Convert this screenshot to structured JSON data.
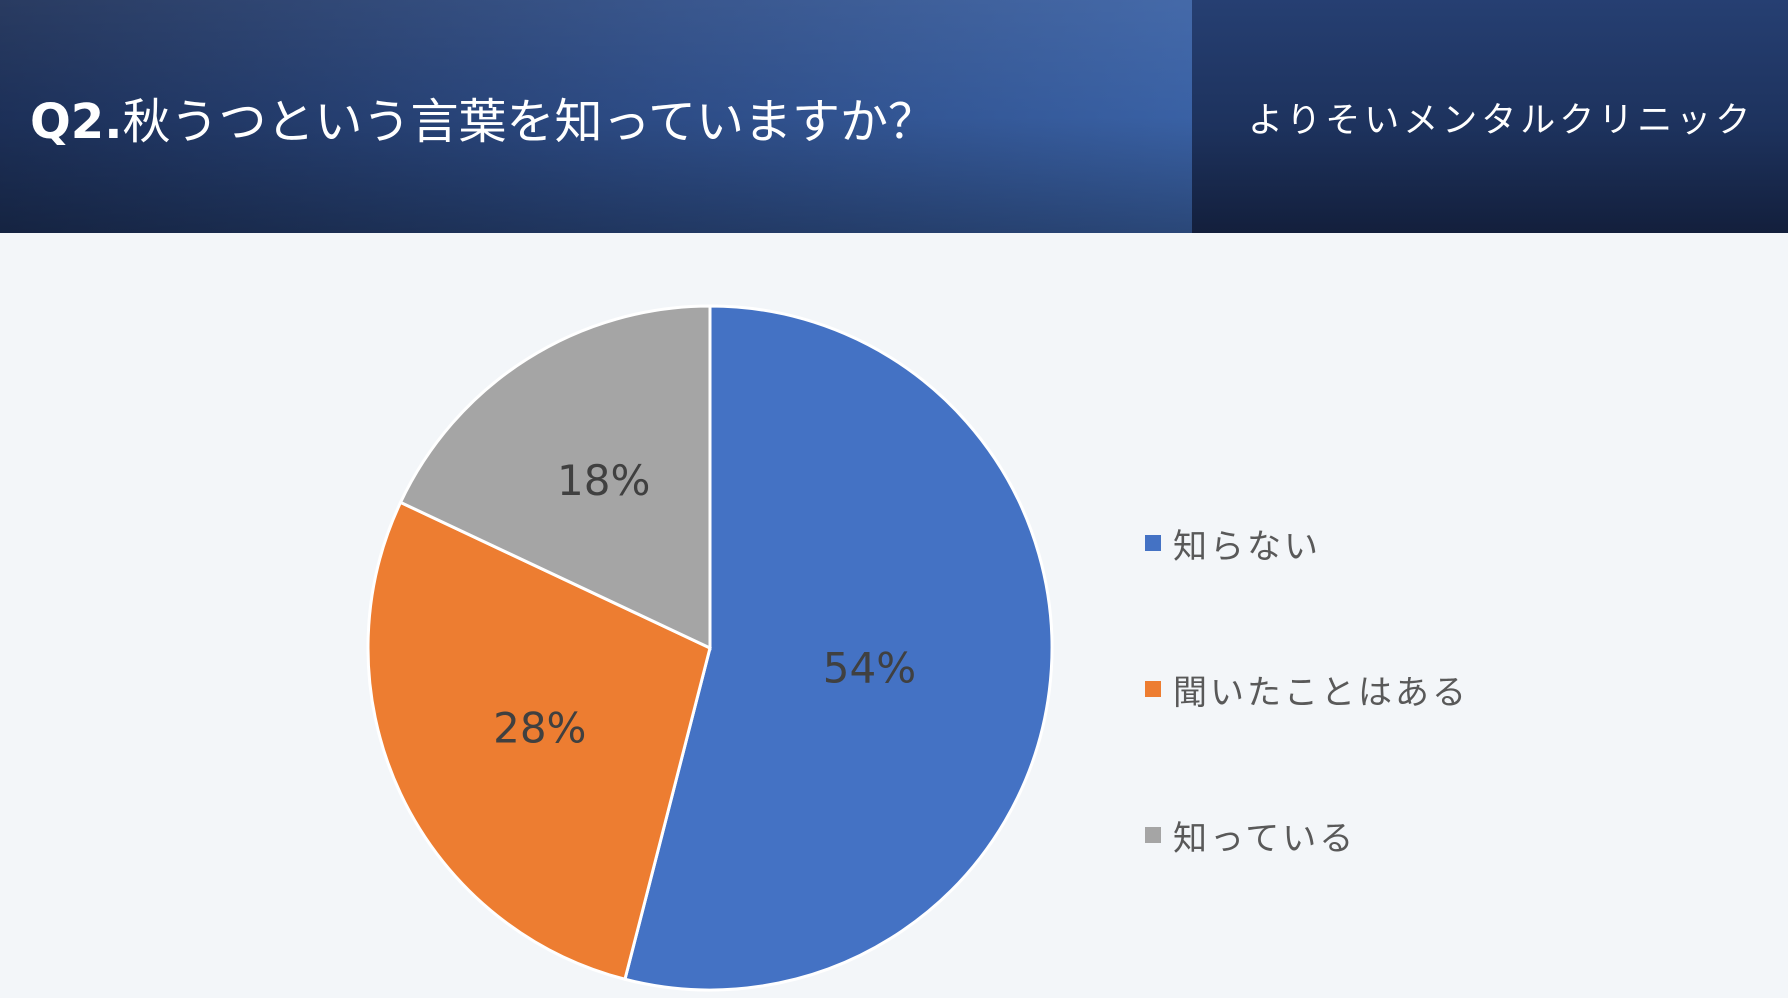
{
  "header": {
    "title_prefix": "Q2.",
    "title_text": "秋うつという言葉を知っていますか？",
    "clinic_name": "よりそいメンタルクリニック"
  },
  "chart_data": {
    "type": "pie",
    "categories": [
      "知らない",
      "聞いたことはある",
      "知っている"
    ],
    "values": [
      54,
      28,
      18
    ],
    "labels": [
      "54%",
      "28%",
      "18%"
    ],
    "colors": [
      "#4472c4",
      "#ed7d31",
      "#a5a5a5"
    ],
    "legend_placement": "right",
    "start_angle": "12 o'clock, clockwise"
  }
}
